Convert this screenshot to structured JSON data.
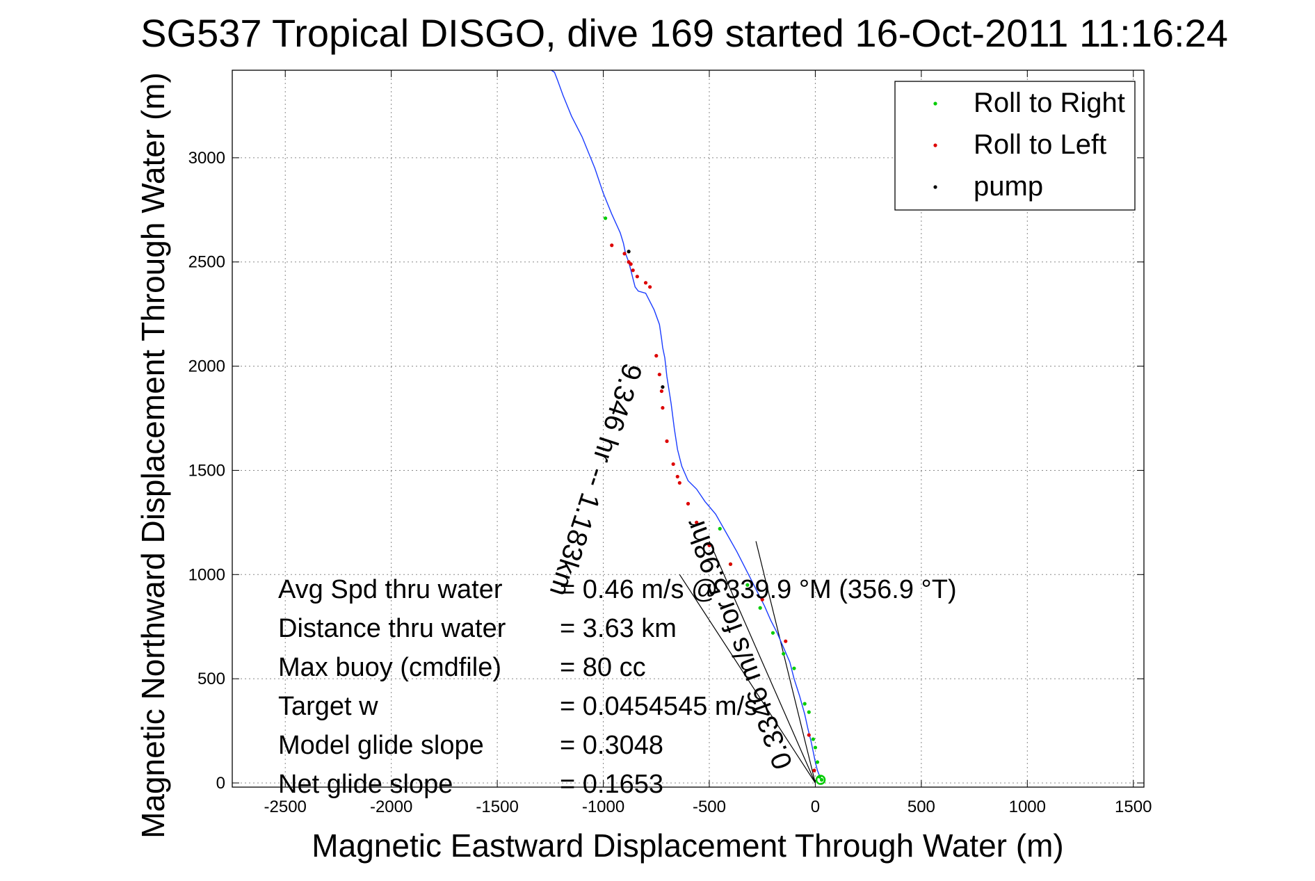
{
  "chart_data": {
    "type": "line",
    "title": "SG537 Tropical DISGO, dive 169 started 16-Oct-2011 11:16:24",
    "xlabel": "Magnetic Eastward Displacement Through Water (m)",
    "ylabel": "Magnetic Northward Displacement Through Water (m)",
    "xlim": [
      -2750,
      1550
    ],
    "ylim": [
      -20,
      3420
    ],
    "xticks": [
      -2500,
      -2000,
      -1500,
      -1000,
      -500,
      0,
      500,
      1000,
      1500
    ],
    "yticks": [
      0,
      500,
      1000,
      1500,
      2000,
      2500,
      3000
    ],
    "grid": true,
    "legend_position": "top-right",
    "colors": {
      "track": "#1a3cff",
      "roll_right": "#00cc00",
      "roll_left": "#dd0000",
      "pump": "#000000",
      "axes": "#000000",
      "grid": "#888888"
    },
    "legend": [
      {
        "label": "Roll to Right",
        "color": "#00cc00"
      },
      {
        "label": "Roll to Left",
        "color": "#dd0000"
      },
      {
        "label": "pump",
        "color": "#000000"
      }
    ],
    "series": [
      {
        "name": "track",
        "x": [
          25,
          10,
          0,
          -10,
          -20,
          -35,
          -50,
          -75,
          -100,
          -120,
          -150,
          -180,
          -210,
          -240,
          -280,
          -320,
          -370,
          -420,
          -470,
          -520,
          -560,
          -600,
          -630,
          -650,
          -665,
          -680,
          -700,
          -710,
          -720,
          -725,
          -735,
          -760,
          -800,
          -835,
          -850,
          -860,
          -870,
          -880,
          -895,
          -905,
          -920,
          -960,
          -1000,
          -1040,
          -1100,
          -1150,
          -1190,
          -1215,
          -1230,
          -1245
        ],
        "y": [
          20,
          60,
          100,
          150,
          200,
          260,
          330,
          420,
          500,
          580,
          650,
          720,
          780,
          850,
          930,
          1010,
          1110,
          1200,
          1290,
          1350,
          1410,
          1450,
          1520,
          1600,
          1700,
          1820,
          1950,
          2040,
          2090,
          2130,
          2200,
          2270,
          2350,
          2360,
          2380,
          2420,
          2460,
          2500,
          2540,
          2590,
          2640,
          2730,
          2830,
          2950,
          3100,
          3200,
          3300,
          3370,
          3410,
          3420
        ]
      },
      {
        "name": "Roll to Right",
        "x": [
          30,
          20,
          10,
          0,
          -10,
          -30,
          -50,
          -100,
          -150,
          -200,
          -260,
          -320,
          -400,
          -450,
          -990
        ],
        "y": [
          15,
          30,
          100,
          170,
          210,
          340,
          380,
          550,
          620,
          720,
          840,
          950,
          1050,
          1220,
          2710
        ]
      },
      {
        "name": "Roll to Left",
        "x": [
          -5,
          -30,
          -140,
          -250,
          -400,
          -500,
          -560,
          -600,
          -640,
          -650,
          -670,
          -700,
          -720,
          -725,
          -735,
          -750,
          -780,
          -800,
          -840,
          -860,
          -870,
          -880,
          -900,
          -960
        ],
        "y": [
          60,
          230,
          680,
          880,
          1050,
          1140,
          1250,
          1340,
          1440,
          1470,
          1530,
          1640,
          1800,
          1880,
          1960,
          2050,
          2380,
          2400,
          2430,
          2460,
          2490,
          2500,
          2540,
          2580
        ]
      },
      {
        "name": "pump",
        "x": [
          -720,
          -880
        ],
        "y": [
          1900,
          2550
        ]
      }
    ],
    "lines": [
      {
        "x": [
          0,
          -500
        ],
        "y": [
          0,
          1160
        ]
      },
      {
        "x": [
          0,
          -280
        ],
        "y": [
          0,
          1160
        ]
      },
      {
        "x": [
          0,
          -640
        ],
        "y": [
          0,
          1000
        ]
      }
    ],
    "annotations": {
      "vector_label": "0.3346 m/s for 5.98hr",
      "current_label": "9.346 hr -- 1.183km",
      "stats": [
        {
          "label": "Avg Spd thru water",
          "value": "=  0.46 m/s @ 339.9 °M (356.9 °T)"
        },
        {
          "label": "Distance thru water",
          "value": "=  3.63 km"
        },
        {
          "label": "Max buoy (cmdfile)",
          "value": "= 80 cc"
        },
        {
          "label": "Target w",
          "value": "= 0.0454545 m/s"
        },
        {
          "label": "Model glide slope",
          "value": "= 0.3048"
        },
        {
          "label": "Net glide slope",
          "value": "= 0.1653"
        }
      ]
    }
  }
}
